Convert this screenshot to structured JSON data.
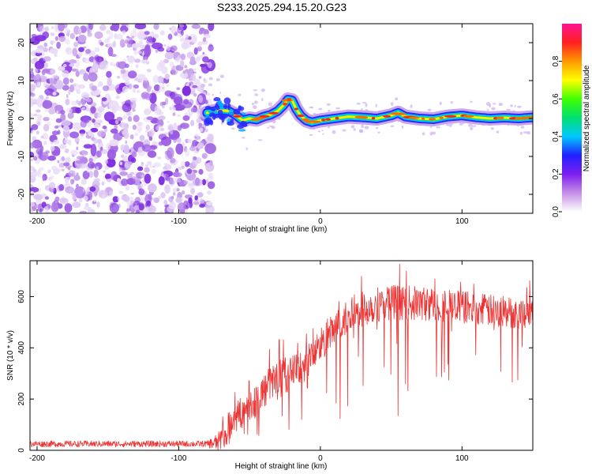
{
  "title": "S233.2025.294.15.20.G23",
  "chart_data": [
    {
      "type": "heatmap",
      "name": "spectrogram",
      "xlabel": "Height of straight line (km)",
      "ylabel": "Frequency (Hz)",
      "xlim": [
        -205,
        150
      ],
      "ylim": [
        -25,
        25
      ],
      "xticks": [
        -200,
        -100,
        0,
        100
      ],
      "yticks": [
        -20,
        -10,
        0,
        10,
        20
      ],
      "signal_start_km": -80,
      "ridge": {
        "x": [
          -80,
          -72,
          -65,
          -60,
          -55,
          -50,
          -45,
          -40,
          -35,
          -30,
          -26,
          -23,
          -20,
          -17,
          -14,
          -10,
          -6,
          0,
          10,
          20,
          30,
          40,
          50,
          55,
          60,
          70,
          80,
          90,
          100,
          110,
          120,
          130,
          140,
          150
        ],
        "y": [
          1.5,
          2.2,
          2.0,
          1.0,
          -0.5,
          0.0,
          -0.3,
          0.5,
          1.0,
          2.0,
          3.5,
          5.0,
          4.8,
          2.5,
          0.8,
          -0.5,
          -1.0,
          -0.5,
          0.0,
          0.5,
          0.3,
          0.0,
          0.8,
          1.5,
          0.5,
          0.0,
          -0.2,
          0.5,
          0.8,
          0.3,
          0.0,
          0.2,
          0.0,
          0.3
        ]
      },
      "colorbar": {
        "label": "Normalized spectral amplitude",
        "range": [
          0.0,
          1.0
        ],
        "ticks": [
          0.0,
          0.2,
          0.4,
          0.6,
          0.8
        ],
        "tick_labels": [
          "0.0",
          "0.2",
          "0.4",
          "0.6",
          "0.8"
        ],
        "colors": [
          "#ffffff",
          "#c58ee6",
          "#7d1ff0",
          "#2020ff",
          "#00c8ff",
          "#00e070",
          "#40ff00",
          "#ffff00",
          "#ff9900",
          "#ff2020",
          "#ff1493"
        ]
      }
    },
    {
      "type": "line",
      "name": "snr",
      "xlabel": "Height of straight line (km)",
      "ylabel": "SNR (10 * v/v)",
      "xlim": [
        -205,
        150
      ],
      "ylim": [
        0,
        740
      ],
      "xticks": [
        -200,
        -100,
        0,
        100
      ],
      "yticks": [
        0,
        200,
        400,
        600
      ],
      "color": "#ee3333",
      "envelope": {
        "x": [
          -205,
          -100,
          -80,
          -72,
          -66,
          -60,
          -50,
          -40,
          -30,
          -20,
          -10,
          0,
          10,
          20,
          30,
          40,
          50,
          60,
          80,
          100,
          120,
          140,
          150
        ],
        "y": [
          25,
          25,
          25,
          30,
          80,
          130,
          170,
          230,
          290,
          300,
          340,
          410,
          470,
          520,
          550,
          570,
          580,
          575,
          570,
          560,
          545,
          535,
          540
        ]
      },
      "noise_amplitude": {
        "x": [
          -205,
          -80,
          -66,
          -40,
          0,
          40,
          100,
          150
        ],
        "y": [
          12,
          12,
          60,
          70,
          70,
          70,
          65,
          60
        ]
      }
    }
  ]
}
